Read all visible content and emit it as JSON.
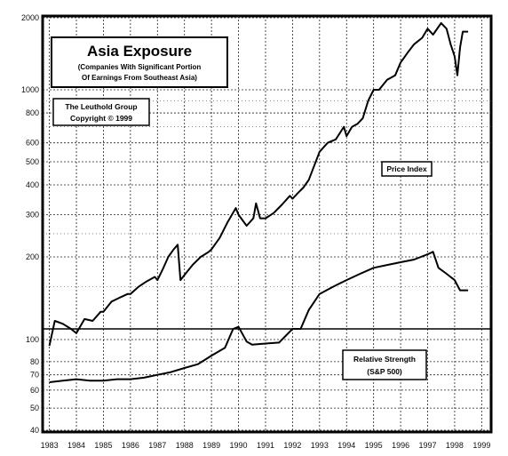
{
  "chart_data": {
    "type": "line",
    "title": "Asia Exposure",
    "subtitle_lines": [
      "(Companies With Significant Portion",
      "Of Earnings From Southeast Asia)"
    ],
    "credit_lines": [
      "The Leuthold Group",
      "Copyright © 1999"
    ],
    "xlabel": "",
    "ylabel": "",
    "log_scale": true,
    "grid": true,
    "x_tick_labels": [
      "1983",
      "1984",
      "1985",
      "1986",
      "1987",
      "1988",
      "1989",
      "1990",
      "1991",
      "1992",
      "1993",
      "1994",
      "1995",
      "1996",
      "1997",
      "1998",
      "1999"
    ],
    "upper_panel": {
      "ylim": [
        100,
        2000
      ],
      "y_tick_labels": [
        "2000",
        "1000",
        "800",
        "600",
        "500",
        "400",
        "300",
        "200"
      ],
      "y_tick_values": [
        2000,
        1000,
        800,
        600,
        500,
        400,
        300,
        200
      ],
      "series": [
        {
          "name": "Price Index",
          "x": [
            1983.0,
            1983.2,
            1983.5,
            1983.8,
            1984.0,
            1984.3,
            1984.6,
            1984.9,
            1985.0,
            1985.3,
            1985.6,
            1985.9,
            1986.0,
            1986.3,
            1986.6,
            1986.9,
            1987.0,
            1987.2,
            1987.4,
            1987.6,
            1987.75,
            1987.85,
            1988.0,
            1988.3,
            1988.6,
            1988.9,
            1989.0,
            1989.3,
            1989.6,
            1989.9,
            1990.0,
            1990.3,
            1990.55,
            1990.65,
            1990.8,
            1991.0,
            1991.3,
            1991.6,
            1991.9,
            1992.0,
            1992.2,
            1992.4,
            1992.6,
            1992.8,
            1993.0,
            1993.3,
            1993.6,
            1993.9,
            1994.0,
            1994.2,
            1994.4,
            1994.6,
            1994.8,
            1995.0,
            1995.2,
            1995.5,
            1995.8,
            1996.0,
            1996.3,
            1996.5,
            1996.8,
            1997.0,
            1997.2,
            1997.5,
            1997.7,
            1997.85,
            1998.0,
            1998.1,
            1998.2,
            1998.3,
            1998.5
          ],
          "values": [
            85,
            108,
            105,
            100,
            96,
            110,
            108,
            118,
            118,
            130,
            135,
            140,
            140,
            150,
            158,
            165,
            160,
            178,
            200,
            215,
            225,
            160,
            168,
            185,
            200,
            210,
            215,
            240,
            280,
            320,
            300,
            270,
            290,
            335,
            290,
            290,
            305,
            330,
            360,
            350,
            370,
            390,
            420,
            480,
            550,
            600,
            620,
            700,
            640,
            700,
            720,
            760,
            900,
            1000,
            1000,
            1100,
            1150,
            1300,
            1450,
            1550,
            1650,
            1800,
            1700,
            1900,
            1800,
            1550,
            1380,
            1150,
            1500,
            1750,
            1750
          ]
        },
        {
          "name": "Relative Strength (S&P 500)",
          "x": [
            1983.0,
            1983.5,
            1984.0,
            1984.5,
            1985.0,
            1985.5,
            1986.0,
            1986.5,
            1987.0,
            1987.5,
            1988.0,
            1988.5,
            1989.0,
            1989.5,
            1989.8,
            1990.0,
            1990.3,
            1990.5,
            1991.0,
            1991.5,
            1992.0,
            1992.3,
            1992.6,
            1993.0,
            1993.5,
            1994.0,
            1994.5,
            1995.0,
            1995.5,
            1996.0,
            1996.5,
            1997.0,
            1997.2,
            1997.4,
            1997.7,
            1998.0,
            1998.2,
            1998.5
          ],
          "values": [
            65,
            66,
            67,
            66,
            66,
            67,
            67,
            68,
            70,
            72,
            75,
            78,
            85,
            92,
            100,
            102,
            98,
            95,
            96,
            97,
            100,
            100,
            120,
            140,
            150,
            160,
            170,
            180,
            185,
            190,
            195,
            205,
            210,
            180,
            170,
            160,
            145,
            145
          ]
        }
      ]
    },
    "lower_panel": {
      "ylim": [
        40,
        100
      ],
      "y_tick_labels": [
        "100",
        "80",
        "70",
        "60",
        "50",
        "40"
      ],
      "y_tick_values": [
        100,
        80,
        70,
        60,
        50,
        40
      ],
      "label_lines": [
        "Relative Strength",
        "(S&P 500)"
      ]
    },
    "annotations": [
      "Price Index"
    ]
  }
}
